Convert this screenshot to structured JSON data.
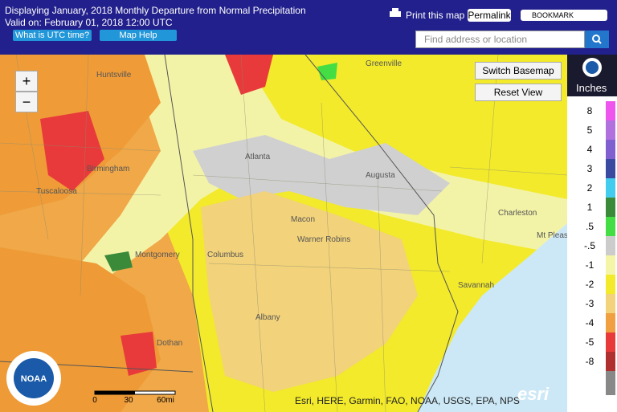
{
  "header": {
    "title": "Displaying January, 2018 Monthly Departure from Normal Precipitation",
    "valid": "Valid on: February 01, 2018 12:00 UTC",
    "utc_button": "What is UTC time?",
    "help_button": "Map Help",
    "print": "Print this map",
    "permalink": "Permalink",
    "bookmark": "BOOKMARK",
    "search_placeholder": "Find address or location"
  },
  "map": {
    "zoom_in": "+",
    "zoom_out": "−",
    "switch_basemap": "Switch Basemap",
    "reset_view": "Reset View",
    "scale": [
      "0",
      "30",
      "60mi"
    ],
    "attribution": "Esri, HERE, Garmin, FAO, NOAA, USGS, EPA, NPS",
    "cities": [
      "Huntsville",
      "Birmingham",
      "Tuscaloosa",
      "Atlanta",
      "Montgomery",
      "Columbus",
      "Macon",
      "Warner Robins",
      "Augusta",
      "Albany",
      "Dothan",
      "Greenville",
      "Charleston",
      "Mt Pleas",
      "Savannah"
    ]
  },
  "legend": {
    "unit": "Inches",
    "items": [
      {
        "label": "8",
        "color": "#ee55ee"
      },
      {
        "label": "5",
        "color": "#b070dd"
      },
      {
        "label": "4",
        "color": "#8060d0"
      },
      {
        "label": "3",
        "color": "#3a4aa0"
      },
      {
        "label": "2",
        "color": "#44ccee"
      },
      {
        "label": "1",
        "color": "#3a8a3a"
      },
      {
        "label": ".5",
        "color": "#44dd44"
      },
      {
        "label": "-.5",
        "color": "#cccccc"
      },
      {
        "label": "-1",
        "color": "#f5f5a8"
      },
      {
        "label": "-2",
        "color": "#f2ea2a"
      },
      {
        "label": "-3",
        "color": "#f2d27a"
      },
      {
        "label": "-4",
        "color": "#f0a040"
      },
      {
        "label": "-5",
        "color": "#e83a3a"
      },
      {
        "label": "-8",
        "color": "#b03030"
      }
    ]
  }
}
